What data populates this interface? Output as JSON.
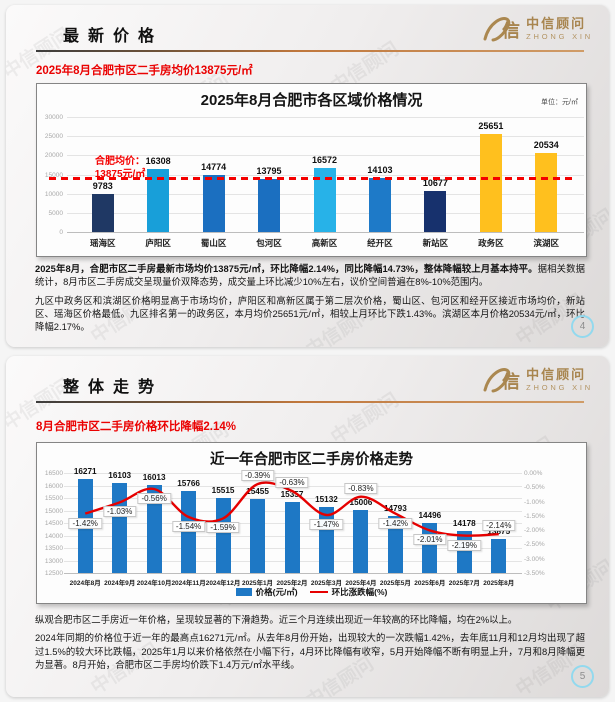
{
  "brand": {
    "logo_name": "中信顾问",
    "logo_sub": "ZHONG XIN",
    "watermark": "中信顾问"
  },
  "slides": [
    {
      "section_title": "最新价格",
      "headline": "2025年8月合肥市区二手房均价13875元/㎡",
      "paragraphs": {
        "p1_bold": "2025年8月，合肥市区二手房最新市场均价13875元/㎡，环比降幅2.14%，同比降幅14.73%，整体降幅较上月基本持平。",
        "p1_rest": "据相关数据统计，8月市区二手房成交呈现量价双降态势，成交量上环比减少10%左右，议价空间普遍在8%-10%范围内。",
        "p2": "九区中政务区和滨湖区价格明显高于市场均价，庐阳区和高新区属于第二层次价格，蜀山区、包河区和经开区接近市场均价，新站区、瑶海区价格最低。九区排名第一的政务区，本月均价25651元/㎡，相较上月环比下跌1.43%。滨湖区本月价格20534元/㎡，环比降幅2.17%。"
      },
      "page_number": "4"
    },
    {
      "section_title": "整体走势",
      "headline": "8月合肥市区二手房价格环比降幅2.14%",
      "paragraphs": {
        "p1": "纵观合肥市区二手房近一年价格，呈现较显著的下滑趋势。近三个月连续出现近一年较高的环比降幅，均在2%以上。",
        "p2": "2024年同期的价格位于近一年的最高点16271元/㎡。从去年8月份开始，出现较大的一次跌幅1.42%，去年底11月和12月均出现了超过1.5%的较大环比跌幅，2025年1月以来价格依然在小幅下行，4月环比降幅有收窄，5月开始降幅不断有明显上升，7月和8月降幅更为显著。8月开始，合肥市区二手房均价跌下1.4万元/㎡水平线。"
      },
      "page_number": "5"
    }
  ],
  "chart_data": [
    {
      "type": "bar",
      "title": "2025年8月合肥市各区域价格情况",
      "unit_label": "单位：元/㎡",
      "categories": [
        "瑶海区",
        "庐阳区",
        "蜀山区",
        "包河区",
        "高新区",
        "经开区",
        "新站区",
        "政务区",
        "滨湖区"
      ],
      "values": [
        9783,
        16308,
        14774,
        13795,
        16572,
        14103,
        10677,
        25651,
        20534
      ],
      "bar_colors": [
        "#1f3864",
        "#189fd9",
        "#1b6fc0",
        "#1b6fc0",
        "#27b2e8",
        "#1e7ac8",
        "#17316d",
        "#ffc01e",
        "#ffc01e"
      ],
      "xlabel": "",
      "ylabel": "",
      "ylim": [
        0,
        30000
      ],
      "yticks": [
        0,
        5000,
        10000,
        15000,
        20000,
        25000,
        30000
      ],
      "grid": true,
      "legend_position": "none",
      "average_line": {
        "value": 13875,
        "color": "#f40000",
        "label_line1": "合肥均价：",
        "label_line2": "13875元/㎡"
      }
    },
    {
      "type": "bar+line",
      "title": "近一年合肥市区二手房价格走势",
      "categories": [
        "2024年8月",
        "2024年9月",
        "2024年10月",
        "2024年11月",
        "2024年12月",
        "2025年1月",
        "2025年2月",
        "2025年3月",
        "2025年4月",
        "2025年5月",
        "2025年6月",
        "2025年7月",
        "2025年8月"
      ],
      "series": [
        {
          "name": "价格(元/㎡)",
          "type": "bar",
          "axis": "left",
          "color": "#1e78c5",
          "values": [
            16271,
            16103,
            16013,
            15766,
            15515,
            15455,
            15357,
            15132,
            15006,
            14793,
            14496,
            14178,
            13875
          ]
        },
        {
          "name": "环比涨跌幅(%)",
          "type": "line",
          "axis": "right",
          "color": "#e60000",
          "values": [
            -1.42,
            -1.03,
            -0.56,
            -1.54,
            -1.59,
            -0.39,
            -0.63,
            -1.47,
            -0.83,
            -1.42,
            -2.01,
            -2.19,
            -2.14
          ],
          "labels": [
            "-1.42%",
            "-1.03%",
            "-0.56%",
            "-1.54%",
            "-1.59%",
            "-0.39%",
            "-0.63%",
            "-1.47%",
            "-0.83%",
            "-1.42%",
            "-2.01%",
            "-2.19%",
            "-2.14%"
          ],
          "label_side": [
            "below",
            "below",
            "below",
            "below",
            "below",
            "above",
            "above",
            "below",
            "above",
            "below",
            "below",
            "below",
            "above"
          ]
        }
      ],
      "left_axis": {
        "min": 12500,
        "max": 16500,
        "ticks": [
          12500,
          13000,
          13500,
          14000,
          14500,
          15000,
          15500,
          16000,
          16500
        ]
      },
      "right_axis": {
        "min": -3.5,
        "max": 0,
        "ticks": [
          "0.00%",
          "-0.50%",
          "-1.00%",
          "-1.50%",
          "-2.00%",
          "-2.50%",
          "-3.00%",
          "-3.50%"
        ]
      },
      "grid": true,
      "legend_position": "bottom"
    }
  ]
}
